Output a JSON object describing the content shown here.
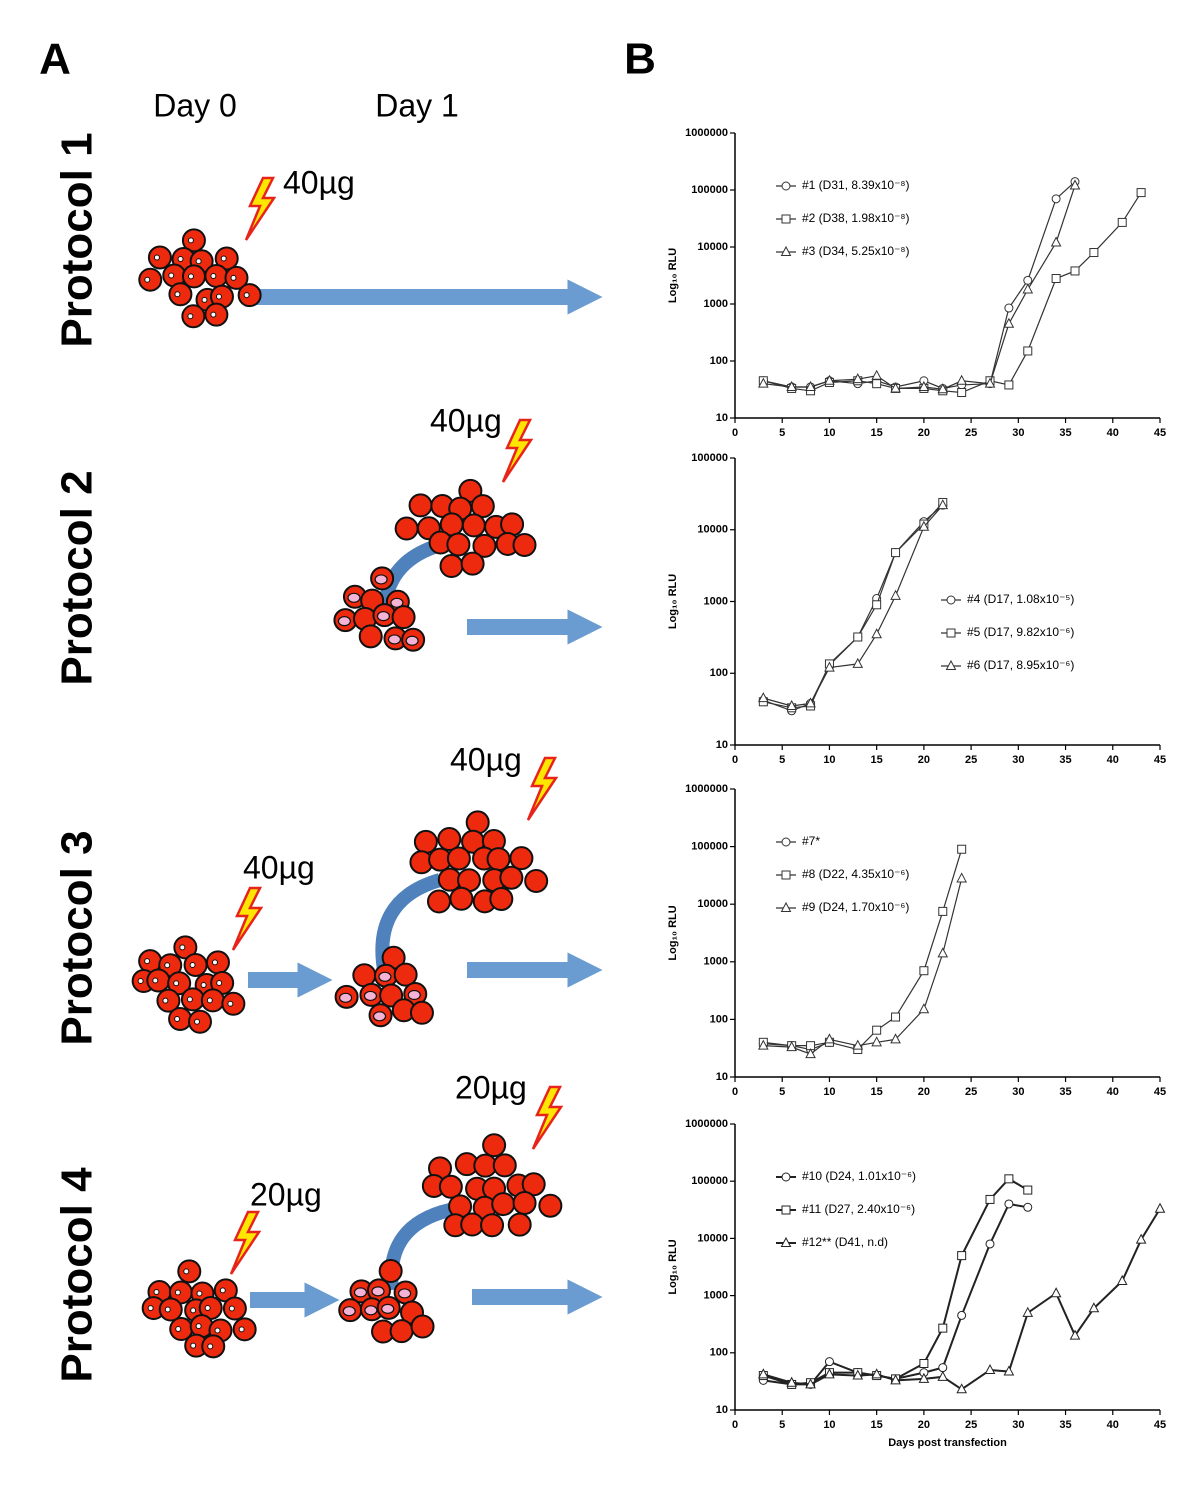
{
  "panel_a": {
    "label": "A",
    "days": [
      "Day 0",
      "Day 1"
    ],
    "protocols": [
      {
        "label": "Protocol 1",
        "doses": [
          "40µg"
        ]
      },
      {
        "label": "Protocol 2",
        "doses": [
          "40µg"
        ]
      },
      {
        "label": "Protocol 3",
        "doses": [
          "40µg",
          "40µg"
        ]
      },
      {
        "label": "Protocol 4",
        "doses": [
          "20µg",
          "20µg"
        ]
      }
    ]
  },
  "panel_b": {
    "label": "B"
  },
  "chart_data": [
    {
      "type": "line",
      "log_y": true,
      "ylabel": "Log₁₀ RLU",
      "xlim": [
        0,
        45
      ],
      "ylim": [
        10,
        1000000
      ],
      "xticks": [
        0,
        5,
        10,
        15,
        20,
        25,
        30,
        35,
        40,
        45
      ],
      "yticks": [
        10,
        100,
        1000,
        10000,
        100000,
        1000000
      ],
      "legend_position": "upper left",
      "line_width": 1.2,
      "series": [
        {
          "name": "#1 (D31, 8.39x10⁻⁸)",
          "color": "#333333",
          "marker": "circle",
          "x": [
            3,
            6,
            8,
            10,
            13,
            15,
            17,
            20,
            22,
            24,
            27,
            29,
            31,
            34,
            36
          ],
          "values": [
            45,
            35,
            35,
            45,
            40,
            45,
            35,
            45,
            33,
            38,
            40,
            850,
            2600,
            70000,
            140000
          ]
        },
        {
          "name": "#2 (D38, 1.98x10⁻⁸)",
          "color": "#333333",
          "marker": "square",
          "x": [
            3,
            6,
            8,
            10,
            13,
            15,
            17,
            20,
            22,
            24,
            27,
            29,
            31,
            34,
            36,
            38,
            41,
            43
          ],
          "values": [
            45,
            33,
            30,
            42,
            45,
            40,
            33,
            33,
            30,
            28,
            45,
            38,
            150,
            2800,
            3800,
            8000,
            27000,
            90000
          ]
        },
        {
          "name": "#3 (D34, 5.25x10⁻⁸)",
          "color": "#333333",
          "marker": "triangle",
          "x": [
            3,
            6,
            8,
            10,
            13,
            15,
            17,
            20,
            22,
            24,
            27,
            29,
            31,
            34,
            36
          ],
          "values": [
            40,
            35,
            35,
            45,
            48,
            55,
            33,
            35,
            32,
            45,
            40,
            450,
            1800,
            12000,
            120000
          ]
        }
      ]
    },
    {
      "type": "line",
      "log_y": true,
      "ylabel": "Log₁₀ RLU",
      "xlim": [
        0,
        45
      ],
      "ylim": [
        10,
        100000
      ],
      "xticks": [
        0,
        5,
        10,
        15,
        20,
        25,
        30,
        35,
        40,
        45
      ],
      "yticks": [
        10,
        100,
        1000,
        10000,
        100000
      ],
      "legend_position": "center right",
      "line_width": 1.2,
      "series": [
        {
          "name": "#4 (D17, 1.08x10⁻⁵)",
          "color": "#333333",
          "marker": "circle",
          "x": [
            3,
            6,
            8,
            10,
            13,
            15,
            17,
            20,
            22
          ],
          "values": [
            42,
            30,
            38,
            130,
            320,
            1100,
            4800,
            13000,
            22000
          ]
        },
        {
          "name": "#5 (D17, 9.82x10⁻⁶)",
          "color": "#333333",
          "marker": "square",
          "x": [
            3,
            6,
            8,
            10,
            13,
            15,
            17,
            20,
            22
          ],
          "values": [
            40,
            33,
            35,
            135,
            320,
            900,
            4800,
            12000,
            24000
          ]
        },
        {
          "name": "#6 (D17, 8.95x10⁻⁶)",
          "color": "#333333",
          "marker": "triangle",
          "x": [
            3,
            6,
            8,
            10,
            13,
            15,
            17,
            20,
            22
          ],
          "values": [
            45,
            35,
            38,
            120,
            135,
            350,
            1200,
            11000,
            22000
          ]
        }
      ]
    },
    {
      "type": "line",
      "log_y": true,
      "ylabel": "Log₁₀ RLU",
      "xlim": [
        0,
        45
      ],
      "ylim": [
        10,
        1000000
      ],
      "xticks": [
        0,
        5,
        10,
        15,
        20,
        25,
        30,
        35,
        40,
        45
      ],
      "yticks": [
        10,
        100,
        1000,
        10000,
        100000,
        1000000
      ],
      "legend_position": "upper left",
      "line_width": 1.2,
      "series": [
        {
          "name": "#7*",
          "color": "#333333",
          "marker": "circle",
          "x": [
            3,
            6,
            8,
            10
          ],
          "values": [
            38,
            35,
            30,
            40
          ]
        },
        {
          "name": "#8 (D22, 4.35x10⁻⁶)",
          "color": "#333333",
          "marker": "square",
          "x": [
            3,
            6,
            8,
            10,
            13,
            15,
            17,
            20,
            22,
            24
          ],
          "values": [
            40,
            35,
            35,
            40,
            30,
            65,
            110,
            700,
            7500,
            90000
          ]
        },
        {
          "name": "#9 (D24, 1.70x10⁻⁶)",
          "color": "#333333",
          "marker": "triangle",
          "x": [
            3,
            6,
            8,
            10,
            13,
            15,
            17,
            20,
            22,
            24
          ],
          "values": [
            35,
            33,
            25,
            45,
            35,
            40,
            45,
            150,
            1400,
            28000
          ]
        }
      ]
    },
    {
      "type": "line",
      "log_y": true,
      "ylabel": "Log₁₀ RLU",
      "xlabel": "Days post transfection",
      "xlim": [
        0,
        45
      ],
      "ylim": [
        10,
        1000000
      ],
      "xticks": [
        0,
        5,
        10,
        15,
        20,
        25,
        30,
        35,
        40,
        45
      ],
      "yticks": [
        10,
        100,
        1000,
        10000,
        100000,
        1000000
      ],
      "legend_position": "upper left",
      "line_width": 2,
      "series": [
        {
          "name": "#10 (D24, 1.01x10⁻⁶)",
          "color": "#222222",
          "marker": "circle",
          "x": [
            3,
            6,
            8,
            10,
            13,
            15,
            17,
            20,
            22,
            24,
            27,
            29,
            31
          ],
          "values": [
            33,
            28,
            28,
            70,
            45,
            40,
            35,
            45,
            55,
            450,
            8000,
            40000,
            35000
          ]
        },
        {
          "name": "#11 (D27, 2.40x10⁻⁶)",
          "color": "#222222",
          "marker": "square",
          "x": [
            3,
            6,
            8,
            10,
            13,
            15,
            17,
            20,
            22,
            24,
            27,
            29,
            31
          ],
          "values": [
            40,
            28,
            30,
            45,
            45,
            40,
            35,
            65,
            270,
            5000,
            48000,
            110000,
            70000
          ]
        },
        {
          "name": "#12** (D41, n.d)",
          "color": "#222222",
          "marker": "triangle",
          "x": [
            3,
            6,
            8,
            10,
            13,
            15,
            17,
            20,
            22,
            24,
            27,
            29,
            31,
            34,
            36,
            38,
            41,
            43,
            45
          ],
          "values": [
            42,
            30,
            28,
            42,
            40,
            42,
            33,
            35,
            38,
            23,
            50,
            47,
            500,
            1100,
            200,
            600,
            1800,
            9500,
            33000
          ]
        }
      ]
    }
  ]
}
